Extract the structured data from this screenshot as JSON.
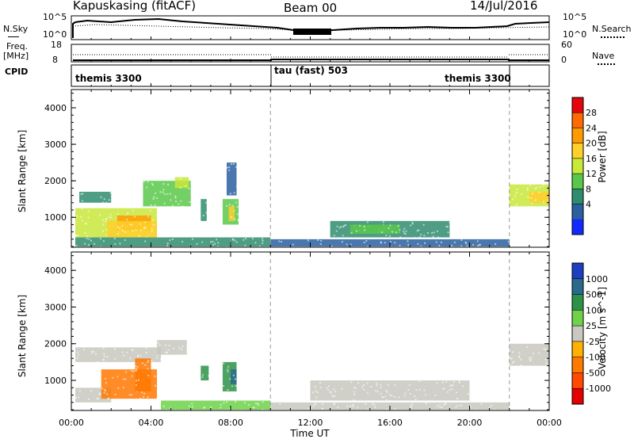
{
  "header": {
    "station": "Kapuskasing (fitACF)",
    "beam": "Beam 00",
    "date": "14/Jul/2016"
  },
  "nsky_panel": {
    "left_label": "N.Sky",
    "right_label": "N.Search",
    "left_ticks": [
      "10^5",
      "10^0"
    ],
    "right_ticks": [
      "10^5",
      "10^0"
    ]
  },
  "freq_panel": {
    "left_label": "Freq.",
    "left_unit": "[MHz]",
    "left_ticks": [
      "18",
      "8"
    ],
    "right_label": "Nave",
    "right_ticks": [
      "60",
      "0"
    ]
  },
  "cpid_panel": {
    "label": "CPID",
    "segments": [
      {
        "text": "themis 3300",
        "start_hour": 0,
        "end_hour": 10
      },
      {
        "text": "tau (fast) 503",
        "start_hour": 10,
        "end_hour": 22
      },
      {
        "text": "themis 3300",
        "start_hour": 22,
        "end_hour": 24
      }
    ]
  },
  "power_colorbar": {
    "label": "Power [dB]",
    "ticks": [
      "28",
      "24",
      "20",
      "16",
      "12",
      "8",
      "4"
    ],
    "colors": [
      "#e4060a",
      "#ff6a00",
      "#ff9b00",
      "#ffcf2a",
      "#c8e83a",
      "#59c84a",
      "#2f8c6f",
      "#2a5fa0",
      "#1229ff"
    ]
  },
  "velocity_colorbar": {
    "label": "Velocity [m s^-1]",
    "ticks": [
      "1000",
      "500",
      "100",
      "25",
      "-25",
      "-100",
      "-500",
      "-1000"
    ],
    "colors": [
      "#1b3fbf",
      "#2a6a8c",
      "#2d9248",
      "#6fd24a",
      "#c8c8c0",
      "#ffb000",
      "#ff7800",
      "#ff4a00",
      "#e40000"
    ]
  },
  "x_ticks": [
    "00:00",
    "04:00",
    "08:00",
    "12:00",
    "16:00",
    "20:00",
    "00:00"
  ],
  "x_label": "Time UT",
  "y_label": "Slant Range [km]",
  "y_ticks": [
    "4000",
    "3000",
    "2000",
    "1000"
  ],
  "chart_data": [
    {
      "type": "heatmap",
      "name": "power",
      "xlim": [
        0,
        24
      ],
      "ylim": [
        180,
        4500
      ],
      "vlines_hours": [
        10,
        22
      ],
      "patches": [
        {
          "t0": 0.2,
          "t1": 4.3,
          "r0": 450,
          "r1": 1250,
          "value": 16
        },
        {
          "t0": 2.3,
          "t1": 4.0,
          "r0": 650,
          "r1": 1050,
          "value": 24
        },
        {
          "t0": 1.8,
          "t1": 4.3,
          "r0": 450,
          "r1": 900,
          "value": 20
        },
        {
          "t0": 0.4,
          "t1": 2.0,
          "r0": 1400,
          "r1": 1700,
          "value": 10
        },
        {
          "t0": 3.6,
          "t1": 6.0,
          "r0": 1300,
          "r1": 2000,
          "value": 12
        },
        {
          "t0": 5.2,
          "t1": 5.9,
          "r0": 1800,
          "r1": 2100,
          "value": 16
        },
        {
          "t0": 7.6,
          "t1": 8.4,
          "r0": 800,
          "r1": 1500,
          "value": 14
        },
        {
          "t0": 7.9,
          "t1": 8.2,
          "r0": 900,
          "r1": 1300,
          "value": 22
        },
        {
          "t0": 7.8,
          "t1": 8.3,
          "r0": 1600,
          "r1": 2500,
          "value": 6
        },
        {
          "t0": 6.5,
          "t1": 6.8,
          "r0": 900,
          "r1": 1500,
          "value": 8
        },
        {
          "t0": 0.2,
          "t1": 10.0,
          "r0": 200,
          "r1": 450,
          "value": 10
        },
        {
          "t0": 10.0,
          "t1": 22.0,
          "r0": 200,
          "r1": 400,
          "value": 6
        },
        {
          "t0": 13.0,
          "t1": 19.0,
          "r0": 450,
          "r1": 900,
          "value": 8
        },
        {
          "t0": 14.0,
          "t1": 16.5,
          "r0": 550,
          "r1": 800,
          "value": 14
        },
        {
          "t0": 22.0,
          "t1": 24.0,
          "r0": 1300,
          "r1": 1900,
          "value": 16
        },
        {
          "t0": 23.0,
          "t1": 24.0,
          "r0": 1400,
          "r1": 1700,
          "value": 20
        }
      ]
    },
    {
      "type": "heatmap",
      "name": "velocity",
      "xlim": [
        0,
        24
      ],
      "ylim": [
        180,
        4500
      ],
      "vlines_hours": [
        10,
        22
      ],
      "patches": [
        {
          "t0": 0.2,
          "t1": 2.0,
          "r0": 400,
          "r1": 800,
          "value": 0
        },
        {
          "t0": 0.2,
          "t1": 4.5,
          "r0": 1500,
          "r1": 1900,
          "value": 0
        },
        {
          "t0": 1.5,
          "t1": 4.3,
          "r0": 500,
          "r1": 1300,
          "value": -300
        },
        {
          "t0": 3.2,
          "t1": 4.0,
          "r0": 700,
          "r1": 1600,
          "value": -200
        },
        {
          "t0": 4.3,
          "t1": 5.8,
          "r0": 1700,
          "r1": 2100,
          "value": 0
        },
        {
          "t0": 7.6,
          "t1": 8.3,
          "r0": 700,
          "r1": 1500,
          "value": 300
        },
        {
          "t0": 8.0,
          "t1": 8.3,
          "r0": 900,
          "r1": 1300,
          "value": 800
        },
        {
          "t0": 6.5,
          "t1": 6.9,
          "r0": 1000,
          "r1": 1400,
          "value": 200
        },
        {
          "t0": 4.5,
          "t1": 10.0,
          "r0": 200,
          "r1": 450,
          "value": 60
        },
        {
          "t0": 10.0,
          "t1": 22.0,
          "r0": 200,
          "r1": 400,
          "value": 0
        },
        {
          "t0": 12.0,
          "t1": 20.0,
          "r0": 450,
          "r1": 1000,
          "value": 0
        },
        {
          "t0": 22.0,
          "t1": 24.0,
          "r0": 1400,
          "r1": 2000,
          "value": 0
        }
      ]
    }
  ]
}
